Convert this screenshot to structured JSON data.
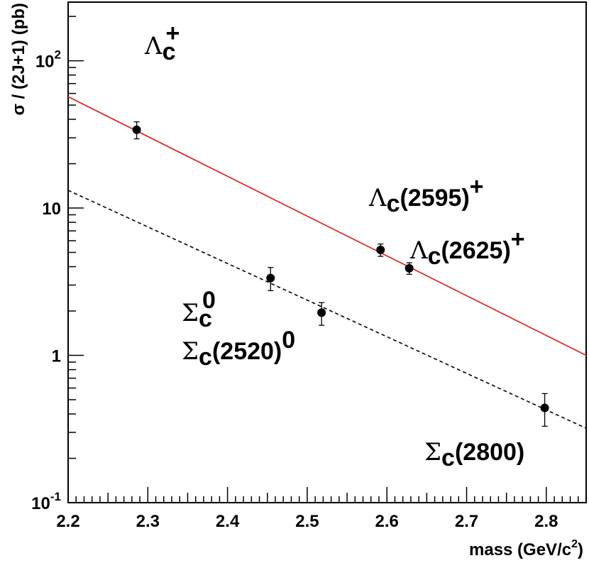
{
  "chart_data": {
    "type": "scatter",
    "title": "",
    "xlabel": "mass (GeV/c²)",
    "xlabel_parts": {
      "main": "mass (GeV/c",
      "sup": "2",
      "end": ")"
    },
    "ylabel": "σ / (2J+1) (pb)",
    "xlim": [
      2.2,
      2.85
    ],
    "ylim": [
      0.1,
      250
    ],
    "yscale": "log",
    "grid": false,
    "legend": "none",
    "x_ticks": [
      "2.2",
      "2.3",
      "2.4",
      "2.5",
      "2.6",
      "2.7",
      "2.8"
    ],
    "y_ticks": [
      {
        "value": 0.1,
        "base": "10",
        "exp": "-1"
      },
      {
        "value": 1,
        "base": "1",
        "exp": ""
      },
      {
        "value": 10,
        "base": "10",
        "exp": ""
      },
      {
        "value": 100,
        "base": "10",
        "exp": "2"
      }
    ],
    "points": [
      {
        "x": 2.286,
        "y": 34.0,
        "err_low": 4.5,
        "err_high": 4.5
      },
      {
        "x": 2.454,
        "y": 3.35,
        "err_low": 0.6,
        "err_high": 0.6
      },
      {
        "x": 2.518,
        "y": 1.95,
        "err_low": 0.35,
        "err_high": 0.33
      },
      {
        "x": 2.592,
        "y": 5.2,
        "err_low": 0.5,
        "err_high": 0.5
      },
      {
        "x": 2.628,
        "y": 3.9,
        "err_low": 0.35,
        "err_high": 0.35
      },
      {
        "x": 2.798,
        "y": 0.44,
        "err_low": 0.11,
        "err_high": 0.11
      }
    ],
    "lines": [
      {
        "style": "solid",
        "color": "#e0302c",
        "x": [
          2.2,
          2.85
        ],
        "y": [
          57.0,
          1.0
        ]
      },
      {
        "style": "dashed",
        "color": "#000000",
        "x": [
          2.2,
          2.85
        ],
        "y": [
          13.2,
          0.32
        ]
      }
    ],
    "annotations": [
      {
        "id": "lambda-c",
        "sym": "Λ",
        "sub": "c",
        "sup": "+",
        "mid": ""
      },
      {
        "id": "lambda-c-2595",
        "sym": "Λ",
        "sub": "c",
        "sup": "+",
        "mid": "(2595)"
      },
      {
        "id": "lambda-c-2625",
        "sym": "Λ",
        "sub": "c",
        "sup": "+",
        "mid": "(2625)"
      },
      {
        "id": "sigma-c",
        "sym": "Σ",
        "sub": "c",
        "sup": "0",
        "mid": ""
      },
      {
        "id": "sigma-c-2520",
        "sym": "Σ",
        "sub": "c",
        "sup": "0",
        "mid": "(2520)"
      },
      {
        "id": "sigma-c-2800",
        "sym": "Σ",
        "sub": "c",
        "sup": "",
        "mid": "(2800)"
      }
    ]
  }
}
